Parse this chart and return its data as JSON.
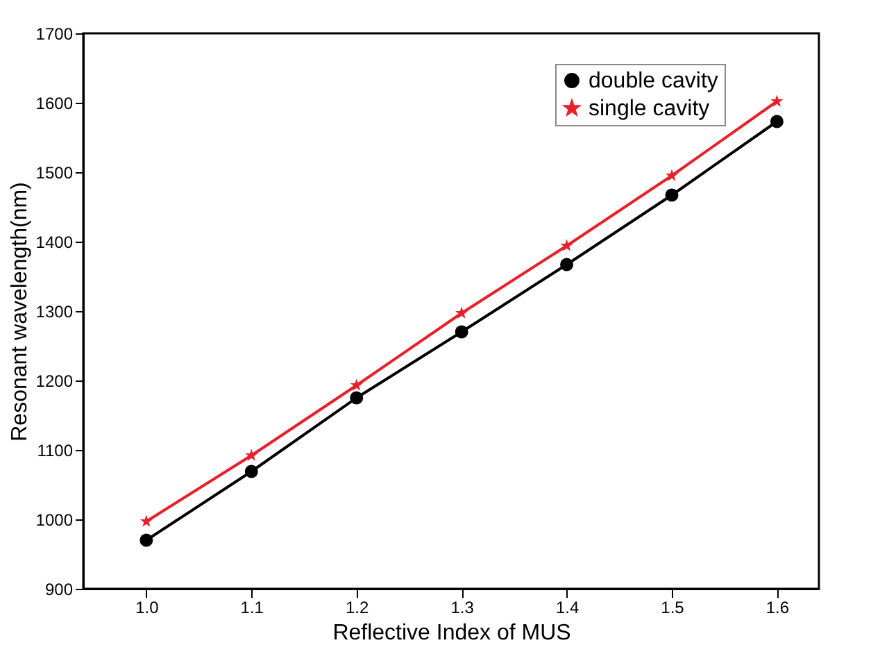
{
  "chart_data": {
    "type": "line",
    "xlabel": "Reflective Index of MUS",
    "ylabel": "Resonant wavelength(nm)",
    "x": [
      1.0,
      1.1,
      1.2,
      1.3,
      1.4,
      1.5,
      1.6
    ],
    "series": [
      {
        "name": "double cavity",
        "color": "#000000",
        "marker": "circle",
        "values": [
          970,
          1069,
          1175,
          1270,
          1367,
          1467,
          1573
        ]
      },
      {
        "name": "single cavity",
        "color": "#e8202a",
        "marker": "star",
        "values": [
          997,
          1092,
          1193,
          1297,
          1394,
          1495,
          1602
        ]
      }
    ],
    "xlim": [
      0.94,
      1.64
    ],
    "xticks": [
      {
        "value": 1.0,
        "label": "1.0"
      },
      1.1,
      1.2,
      1.3,
      1.4,
      1.5,
      1.6
    ],
    "ylim": [
      900,
      1700
    ],
    "yticks": [
      900,
      1000,
      1100,
      1200,
      1300,
      1400,
      1500,
      1600,
      1700
    ],
    "grid": false,
    "legend": "top right",
    "line_style": "solid"
  }
}
